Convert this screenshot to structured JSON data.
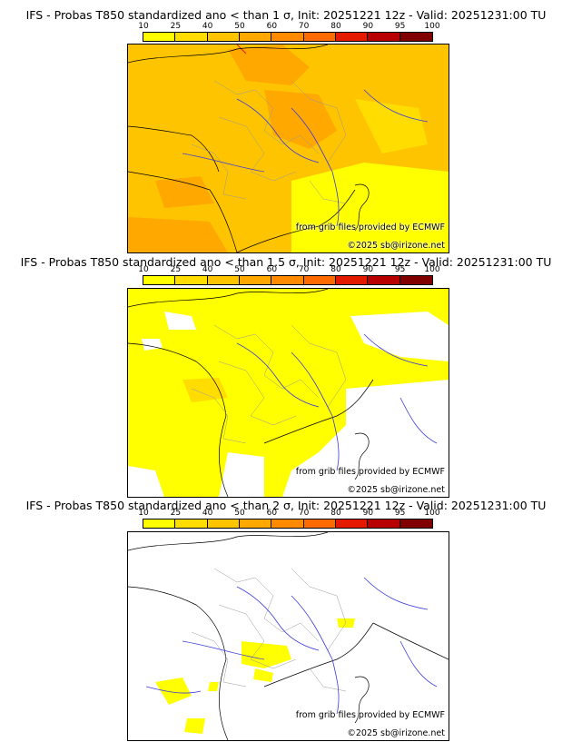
{
  "colorbar": {
    "ticks": [
      "10",
      "25",
      "40",
      "50",
      "60",
      "70",
      "80",
      "90",
      "95",
      "100"
    ],
    "colors": [
      "#ffff00",
      "#ffdd00",
      "#ffc400",
      "#ffa800",
      "#ff8a00",
      "#ff6a00",
      "#e31a00",
      "#b80000",
      "#800000"
    ]
  },
  "panels": [
    {
      "title": "IFS - Probas T850  standardized ano < than 1 σ, Init: 20251221 12z - Valid: 20251231:00 TU",
      "provider": "from grib files provided by ECMWF",
      "copyright": "©2025 sb@irizone.net",
      "field_color": "#ffc400"
    },
    {
      "title": "IFS - Probas T850  standardized ano < than 1.5 σ, Init: 20251221 12z - Valid: 20251231:00 TU",
      "provider": "from grib files provided by ECMWF",
      "copyright": "©2025 sb@irizone.net",
      "field_color": "#ffff00"
    },
    {
      "title": "IFS - Probas T850  standardized ano < than 2 σ, Init: 20251221 12z - Valid: 20251231:00 TU",
      "provider": "from grib files provided by ECMWF",
      "copyright": "©2025 sb@irizone.net",
      "field_color": "#ffffff"
    }
  ]
}
